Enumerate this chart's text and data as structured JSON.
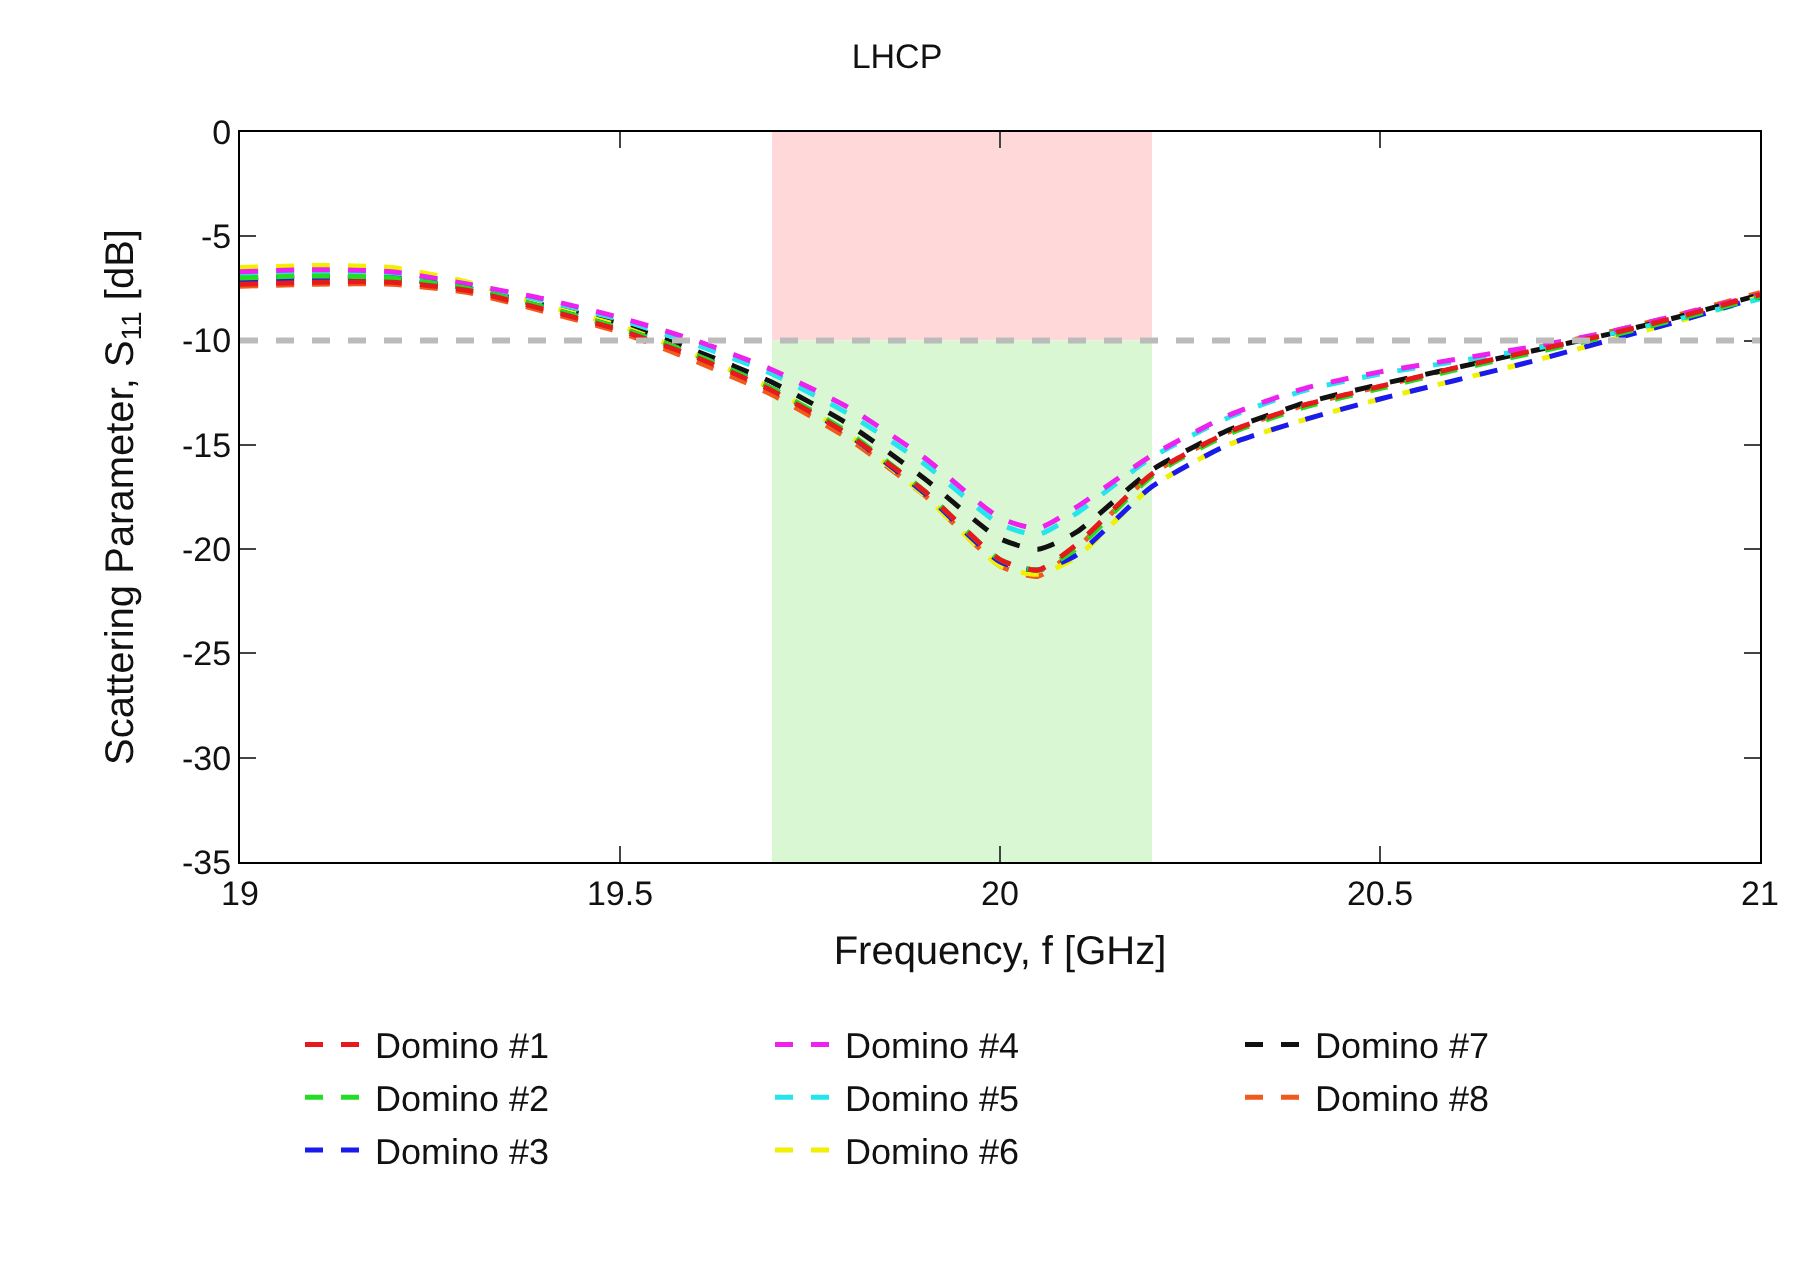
{
  "chart_data": {
    "type": "line",
    "title": "LHCP",
    "xlabel": "Frequency, f [GHz]",
    "ylabel": "Scattering Parameter, S$_{11}$ [dB]",
    "x": [
      19,
      19.1,
      19.2,
      19.3,
      19.4,
      19.5,
      19.6,
      19.7,
      19.8,
      19.9,
      20,
      20.05,
      20.1,
      20.2,
      20.3,
      20.4,
      20.5,
      20.6,
      20.7,
      20.8,
      20.9,
      21
    ],
    "series": [
      {
        "name": "Domino #1",
        "color": "#e41a1c",
        "values": [
          -7.3,
          -7.2,
          -7.2,
          -7.6,
          -8.5,
          -9.5,
          -10.8,
          -12.4,
          -14.5,
          -17.2,
          -20.5,
          -21.0,
          -19.8,
          -16.4,
          -14.4,
          -13.1,
          -12.2,
          -11.3,
          -10.5,
          -9.7,
          -8.8,
          -7.8
        ]
      },
      {
        "name": "Domino #2",
        "color": "#22dd22",
        "values": [
          -7.0,
          -6.9,
          -7.0,
          -7.5,
          -8.4,
          -9.4,
          -10.7,
          -12.3,
          -14.4,
          -17.2,
          -20.5,
          -21.0,
          -20.0,
          -16.5,
          -14.5,
          -13.2,
          -12.3,
          -11.4,
          -10.6,
          -9.8,
          -8.9,
          -7.9
        ]
      },
      {
        "name": "Domino #3",
        "color": "#1a1aee",
        "values": [
          -7.1,
          -7.0,
          -7.0,
          -7.5,
          -8.4,
          -9.4,
          -10.7,
          -12.3,
          -14.5,
          -17.3,
          -20.6,
          -21.0,
          -20.3,
          -17.0,
          -15.0,
          -13.8,
          -12.8,
          -11.9,
          -11.0,
          -10.0,
          -9.0,
          -7.9
        ]
      },
      {
        "name": "Domino #4",
        "color": "#ee22ee",
        "values": [
          -6.7,
          -6.6,
          -6.7,
          -7.3,
          -8.0,
          -8.9,
          -10.0,
          -11.4,
          -13.2,
          -15.6,
          -18.5,
          -19.0,
          -18.0,
          -15.5,
          -13.6,
          -12.3,
          -11.5,
          -10.9,
          -10.3,
          -9.6,
          -8.7,
          -7.8
        ]
      },
      {
        "name": "Domino #5",
        "color": "#22e5ee",
        "values": [
          -6.8,
          -6.7,
          -6.8,
          -7.3,
          -8.1,
          -9.0,
          -10.2,
          -11.6,
          -13.5,
          -15.9,
          -18.8,
          -19.3,
          -18.3,
          -15.6,
          -13.7,
          -12.4,
          -11.6,
          -11.0,
          -10.4,
          -9.7,
          -8.9,
          -8.0
        ]
      },
      {
        "name": "Domino #6",
        "color": "#f0f000",
        "values": [
          -6.5,
          -6.4,
          -6.5,
          -7.2,
          -8.3,
          -9.3,
          -10.7,
          -12.3,
          -14.5,
          -17.4,
          -20.8,
          -21.2,
          -20.4,
          -17.0,
          -15.0,
          -13.8,
          -12.8,
          -11.9,
          -11.0,
          -10.0,
          -9.0,
          -7.9
        ]
      },
      {
        "name": "Domino #7",
        "color": "#111111",
        "values": [
          -7.0,
          -6.9,
          -7.0,
          -7.5,
          -8.3,
          -9.2,
          -10.5,
          -12.0,
          -14.0,
          -16.6,
          -19.5,
          -20.0,
          -19.2,
          -16.2,
          -14.3,
          -13.0,
          -12.1,
          -11.3,
          -10.5,
          -9.7,
          -8.8,
          -7.8
        ]
      },
      {
        "name": "Domino #8",
        "color": "#f05a1a",
        "values": [
          -7.4,
          -7.3,
          -7.3,
          -7.7,
          -8.6,
          -9.6,
          -11.0,
          -12.6,
          -14.7,
          -17.4,
          -20.8,
          -21.3,
          -20.0,
          -16.4,
          -14.4,
          -13.1,
          -12.2,
          -11.3,
          -10.4,
          -9.6,
          -8.7,
          -7.7
        ]
      }
    ],
    "xlim": [
      19,
      21
    ],
    "xticks": [
      19,
      19.5,
      20,
      20.5,
      21
    ],
    "ylim": [
      -35,
      0
    ],
    "yticks": [
      0,
      -5,
      -10,
      -15,
      -20,
      -25,
      -30,
      -35
    ],
    "ref_lines": [
      {
        "axis": "y",
        "value": -10,
        "color": "#bbbbbb",
        "line_style": "dashed"
      }
    ],
    "bands": [
      {
        "axis": "x",
        "from": 19.7,
        "to": 20.2,
        "color": "#ffd9d9"
      },
      {
        "axis": "x",
        "from": 19.7,
        "to": 20.2,
        "color": "#d8f7d2"
      }
    ],
    "grid": false,
    "legend": "bottom",
    "line_style": "dashed",
    "marker": "none"
  }
}
